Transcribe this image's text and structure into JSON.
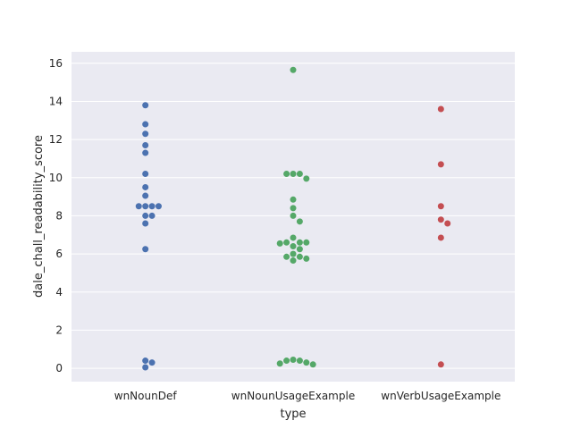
{
  "chart_data": {
    "type": "scatter",
    "subtype": "swarm",
    "title": "",
    "xlabel": "type",
    "ylabel": "dale_chall_readability_score",
    "categories": [
      "wnNounDef",
      "wnNounUsageExample",
      "wnVerbUsageExample"
    ],
    "ylim": [
      -0.7,
      16.6
    ],
    "yticks": [
      0,
      2,
      4,
      6,
      8,
      10,
      12,
      14,
      16
    ],
    "grid": true,
    "legend": "none",
    "series": [
      {
        "category": "wnNounDef",
        "color": "#4c72b0",
        "values": [
          13.8,
          12.8,
          12.3,
          11.7,
          11.3,
          10.2,
          9.5,
          9.05,
          8.5,
          8.5,
          8.5,
          8.5,
          8.0,
          8.0,
          7.6,
          6.25,
          0.4,
          0.3,
          0.05
        ]
      },
      {
        "category": "wnNounUsageExample",
        "color": "#55a868",
        "values": [
          15.65,
          10.2,
          10.2,
          10.2,
          9.95,
          8.85,
          8.4,
          8.0,
          7.7,
          6.85,
          6.6,
          6.6,
          6.6,
          6.55,
          6.4,
          6.25,
          6.0,
          5.85,
          5.85,
          5.75,
          5.65,
          0.45,
          0.4,
          0.4,
          0.3,
          0.25,
          0.2
        ]
      },
      {
        "category": "wnVerbUsageExample",
        "color": "#c44e52",
        "values": [
          13.6,
          10.7,
          8.5,
          7.8,
          7.6,
          6.85,
          0.2
        ]
      }
    ]
  }
}
